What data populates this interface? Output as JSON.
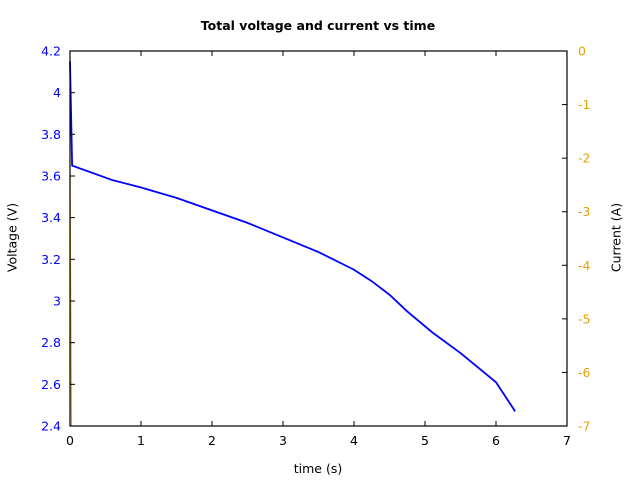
{
  "chart_data": {
    "type": "line",
    "title": "Total voltage and current vs time",
    "xlabel": "time (s)",
    "ylabel": "Voltage (V)",
    "y2label": "Current (A)",
    "xlim": [
      0,
      7
    ],
    "ylim": [
      2.4,
      4.2
    ],
    "y2lim": [
      -7,
      0
    ],
    "xticks": [
      "0",
      "1",
      "2",
      "3",
      "4",
      "5",
      "6",
      "7"
    ],
    "yticks": [
      "2.4",
      "2.6",
      "2.8",
      "3",
      "3.2",
      "3.4",
      "3.6",
      "3.8",
      "4",
      "4.2"
    ],
    "y2ticks": [
      "-7",
      "-6",
      "-5",
      "-4",
      "-3",
      "-2",
      "-1",
      "0"
    ],
    "grid": false,
    "colors": {
      "voltage": "#0000ff",
      "current": "#e6a000",
      "left_axis": "#0000ff",
      "right_axis": "#e6a000"
    },
    "series": [
      {
        "name": "Voltage",
        "axis": "left",
        "x": [
          0,
          0.03,
          0.6,
          1.0,
          1.5,
          2.0,
          2.5,
          3.0,
          3.5,
          4.0,
          4.25,
          4.5,
          4.75,
          5.1,
          5.5,
          6.0,
          6.27
        ],
        "y": [
          4.15,
          3.65,
          3.58,
          3.545,
          3.495,
          3.435,
          3.375,
          3.305,
          3.235,
          3.15,
          3.095,
          3.03,
          2.95,
          2.85,
          2.75,
          2.61,
          2.47
        ]
      },
      {
        "name": "Current",
        "axis": "right",
        "x": [
          0.0,
          0.02
        ],
        "y": [
          -2.3,
          -7.0
        ]
      }
    ]
  }
}
